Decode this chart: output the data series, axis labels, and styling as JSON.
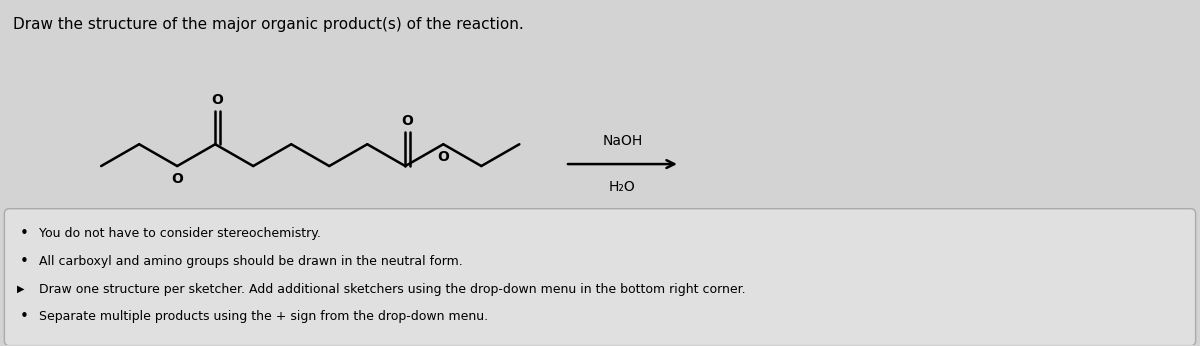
{
  "title": "Draw the structure of the major organic product(s) of the reaction.",
  "background_color": "#d3d3d3",
  "box_background": "#e0e0e0",
  "text_color": "#000000",
  "reagent_above": "NaOH",
  "reagent_below": "H₂O",
  "bullet_points": [
    "You do not have to consider stereochemistry.",
    "All carboxyl and amino groups should be drawn in the neutral form.",
    "Draw one structure per sketcher. Add additional sketchers using the drop-down menu in the bottom right corner.",
    "Separate multiple products using the + sign from the drop-down menu."
  ],
  "molecule_color": "#000000",
  "fig_width": 12.0,
  "fig_height": 3.46,
  "dpi": 100
}
